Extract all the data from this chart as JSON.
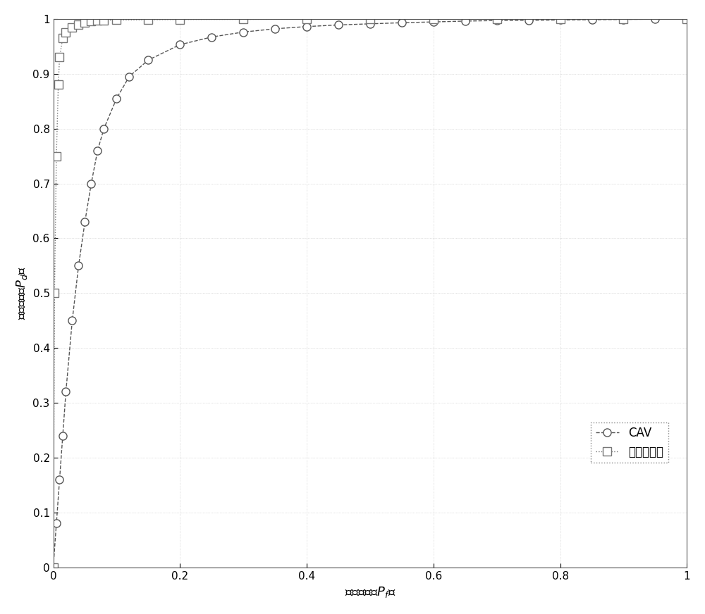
{
  "title": "",
  "xlabel": "虚警概率（P_f）",
  "ylabel": "检测概率（P_d）",
  "xlim": [
    0,
    1
  ],
  "ylim": [
    0,
    1
  ],
  "xticks": [
    0,
    0.2,
    0.4,
    0.6,
    0.8,
    1
  ],
  "yticks": [
    0,
    0.1,
    0.2,
    0.3,
    0.4,
    0.5,
    0.6,
    0.7,
    0.8,
    0.9,
    1
  ],
  "cav_x": [
    0,
    0.005,
    0.01,
    0.015,
    0.02,
    0.03,
    0.04,
    0.05,
    0.06,
    0.07,
    0.08,
    0.1,
    0.12,
    0.15,
    0.2,
    0.25,
    0.3,
    0.35,
    0.4,
    0.45,
    0.5,
    0.55,
    0.6,
    0.65,
    0.7,
    0.75,
    0.8,
    0.85,
    0.9,
    0.95,
    1.0
  ],
  "cav_y": [
    0,
    0.08,
    0.16,
    0.24,
    0.32,
    0.45,
    0.55,
    0.63,
    0.7,
    0.76,
    0.8,
    0.855,
    0.895,
    0.925,
    0.953,
    0.967,
    0.976,
    0.982,
    0.986,
    0.989,
    0.991,
    0.993,
    0.9945,
    0.996,
    0.997,
    0.9975,
    0.998,
    0.9985,
    0.999,
    0.9995,
    1.0
  ],
  "inv_x": [
    0,
    0.002,
    0.005,
    0.008,
    0.01,
    0.015,
    0.02,
    0.03,
    0.04,
    0.05,
    0.06,
    0.07,
    0.08,
    0.1,
    0.15,
    0.2,
    0.3,
    0.4,
    0.5,
    0.6,
    0.7,
    0.8,
    0.9,
    1.0
  ],
  "inv_y": [
    0,
    0.5,
    0.75,
    0.88,
    0.93,
    0.965,
    0.975,
    0.985,
    0.99,
    0.993,
    0.9955,
    0.997,
    0.9975,
    0.998,
    0.9985,
    0.999,
    0.9992,
    0.9994,
    0.9996,
    0.9997,
    0.9998,
    0.9999,
    0.9999,
    1.0
  ],
  "cav_color": "#555555",
  "inv_color": "#777777",
  "legend_cav": "CAV",
  "legend_inv": "本发明方法",
  "figsize": [
    10,
    8.72
  ],
  "dpi": 100,
  "background_color": "#ffffff"
}
